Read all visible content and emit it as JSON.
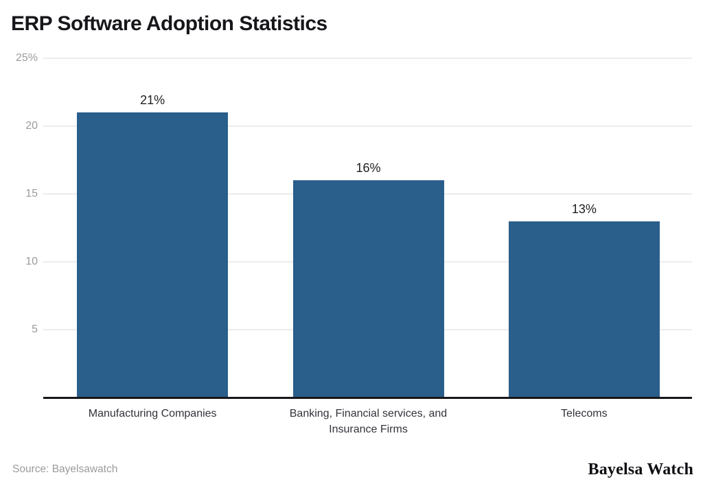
{
  "header": {
    "title": "ERP Software Adoption Statistics"
  },
  "footer": {
    "source": "Source: Bayelsawatch",
    "brand": "Bayelsa Watch"
  },
  "colors": {
    "bar": "#2a5e8b",
    "title": "#17171b",
    "tick": "#9b9b9b",
    "grid": "#ececec",
    "axis": "#17171b",
    "value_label": "#1d1d1f",
    "category_label": "#32323a",
    "source": "#9b9b9b",
    "brand": "#0f0f13"
  },
  "chart_data": {
    "type": "bar",
    "title": "ERP Software Adoption Statistics",
    "categories": [
      "Manufacturing Companies",
      "Banking, Financial services, and Insurance Firms",
      "Telecoms"
    ],
    "values": [
      21,
      16,
      13
    ],
    "value_labels": [
      "21%",
      "16%",
      "13%"
    ],
    "yticks": [
      {
        "value": 5,
        "label": "5"
      },
      {
        "value": 10,
        "label": "10"
      },
      {
        "value": 15,
        "label": "15"
      },
      {
        "value": 20,
        "label": "20"
      },
      {
        "value": 25,
        "label": "25%"
      }
    ],
    "ylim": [
      0,
      25
    ],
    "xlabel": "",
    "ylabel": "",
    "grid": true,
    "legend": "none",
    "source": "Source: Bayelsawatch"
  }
}
